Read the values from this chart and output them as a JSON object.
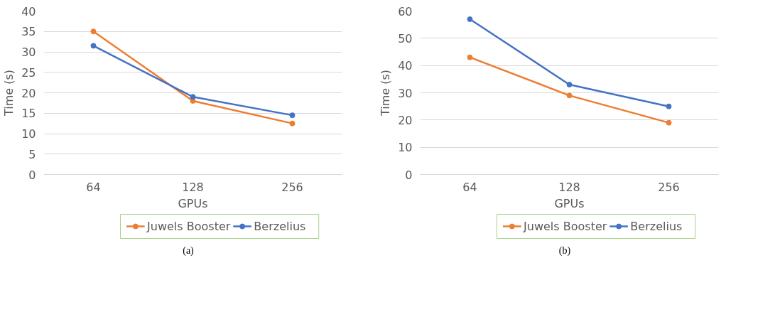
{
  "chart_data": [
    {
      "type": "line",
      "categories": [
        "64",
        "128",
        "256"
      ],
      "xlabel": "GPUs",
      "ylabel": "Time (s)",
      "ylim": [
        0,
        40
      ],
      "yticks": [
        0,
        5,
        10,
        15,
        20,
        25,
        30,
        35,
        40
      ],
      "grid": "y",
      "legend": "bottom",
      "marker": "circle",
      "annotations": [
        "(a)"
      ],
      "series": [
        {
          "name": "Juwels Booster",
          "color": "#ed7d31",
          "values": [
            35,
            18,
            12.5
          ]
        },
        {
          "name": "Berzelius",
          "color": "#4472c4",
          "values": [
            31.5,
            19,
            14.5
          ]
        }
      ]
    },
    {
      "type": "line",
      "categories": [
        "64",
        "128",
        "256"
      ],
      "xlabel": "GPUs",
      "ylabel": "Time (s)",
      "ylim": [
        0,
        60
      ],
      "yticks": [
        0,
        10,
        20,
        30,
        40,
        50,
        60
      ],
      "grid": "y",
      "legend": "bottom",
      "marker": "circle",
      "annotations": [
        "(b)"
      ],
      "series": [
        {
          "name": "Juwels Booster",
          "color": "#ed7d31",
          "values": [
            43,
            29,
            19
          ]
        },
        {
          "name": "Berzelius",
          "color": "#4472c4",
          "values": [
            57,
            33,
            25
          ]
        }
      ]
    }
  ]
}
